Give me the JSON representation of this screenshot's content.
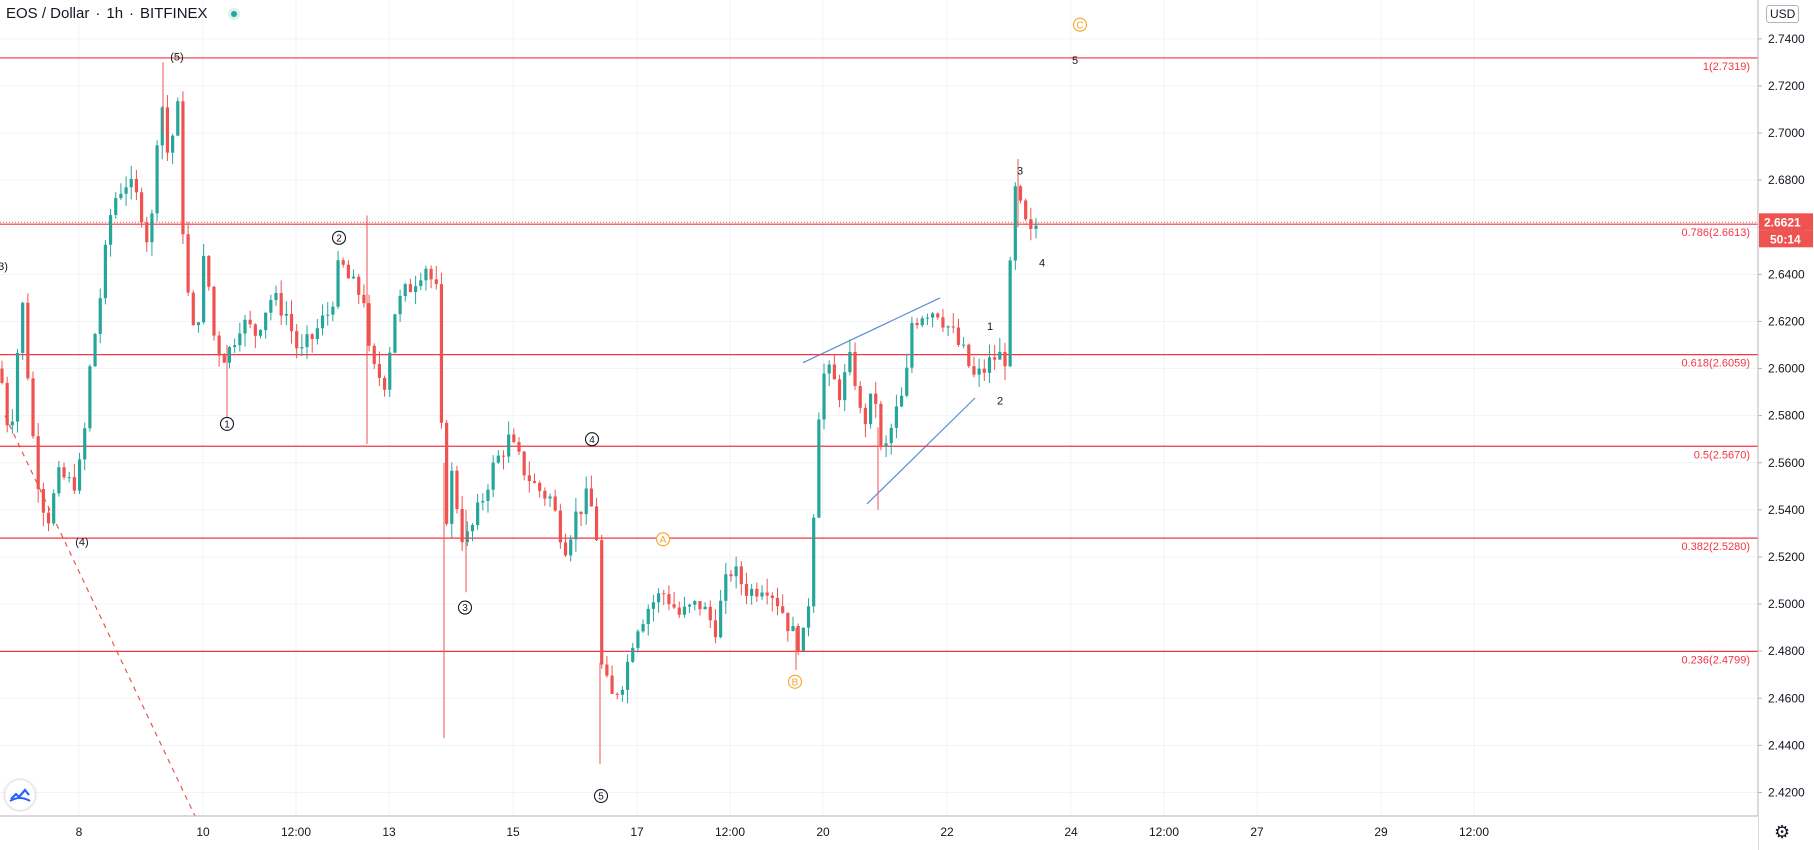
{
  "header": {
    "symbol": "EOS / Dollar",
    "interval": "1h",
    "exchange": "BITFINEX"
  },
  "currency_button": "USD",
  "icons": [
    "live-status-icon",
    "tradingview-logo-icon",
    "settings-gear-icon"
  ],
  "colors": {
    "up": "#26a69a",
    "down": "#ef5350",
    "fib": "#f23645",
    "wave_orange": "#f7a42c",
    "trendline": "#5b8cd6"
  },
  "chart_data": {
    "type": "candlestick",
    "ylim": [
      2.41,
      2.7565
    ],
    "y_ticks": [
      2.42,
      2.44,
      2.46,
      2.48,
      2.5,
      2.52,
      2.54,
      2.56,
      2.58,
      2.6,
      2.62,
      2.64,
      2.66,
      2.68,
      2.7,
      2.72,
      2.74
    ],
    "y_tick_labels": [
      "2.4200",
      "2.4400",
      "2.4600",
      "2.4800",
      "2.5000",
      "2.5200",
      "2.5400",
      "2.5600",
      "2.5800",
      "2.6000",
      "2.6200",
      "2.6400",
      "2.6600",
      "2.6800",
      "2.7000",
      "2.7200",
      "2.7400"
    ],
    "x_ticks": [
      {
        "label": "8",
        "t": 79
      },
      {
        "label": "10",
        "t": 203
      },
      {
        "label": "12:00",
        "t": 296
      },
      {
        "label": "13",
        "t": 389
      },
      {
        "label": "15",
        "t": 513
      },
      {
        "label": "17",
        "t": 637
      },
      {
        "label": "12:00",
        "t": 730
      },
      {
        "label": "20",
        "t": 823
      },
      {
        "label": "22",
        "t": 947
      },
      {
        "label": "24",
        "t": 1071
      },
      {
        "label": "12:00",
        "t": 1164
      },
      {
        "label": "27",
        "t": 1257
      },
      {
        "label": "29",
        "t": 1381
      },
      {
        "label": "12:00",
        "t": 1474
      }
    ],
    "last_price": "2.6621",
    "countdown": "50:14",
    "fib_levels": [
      {
        "value": 2.7319,
        "label": "1(2.7319)"
      },
      {
        "value": 2.6613,
        "label": "0.786(2.6613)"
      },
      {
        "value": 2.6059,
        "label": "0.618(2.6059)"
      },
      {
        "value": 2.567,
        "label": "0.5(2.5670)"
      },
      {
        "value": 2.528,
        "label": "0.382(2.5280)"
      },
      {
        "value": 2.4799,
        "label": "0.236(2.4799)"
      }
    ],
    "waypoints": [
      {
        "t": 0,
        "v": 2.6
      },
      {
        "t": 10,
        "v": 2.57
      },
      {
        "t": 22,
        "v": 2.63
      },
      {
        "t": 35,
        "v": 2.56
      },
      {
        "t": 47,
        "v": 2.535
      },
      {
        "t": 60,
        "v": 2.555
      },
      {
        "t": 72,
        "v": 2.55
      },
      {
        "t": 82,
        "v": 2.56
      },
      {
        "t": 90,
        "v": 2.6
      },
      {
        "t": 100,
        "v": 2.63
      },
      {
        "t": 112,
        "v": 2.67
      },
      {
        "t": 125,
        "v": 2.68
      },
      {
        "t": 140,
        "v": 2.67
      },
      {
        "t": 150,
        "v": 2.65
      },
      {
        "t": 160,
        "v": 2.72
      },
      {
        "t": 168,
        "v": 2.69
      },
      {
        "t": 178,
        "v": 2.71
      },
      {
        "t": 185,
        "v": 2.64
      },
      {
        "t": 195,
        "v": 2.61
      },
      {
        "t": 205,
        "v": 2.65
      },
      {
        "t": 215,
        "v": 2.61
      },
      {
        "t": 227,
        "v": 2.605
      },
      {
        "t": 240,
        "v": 2.62
      },
      {
        "t": 255,
        "v": 2.615
      },
      {
        "t": 270,
        "v": 2.63
      },
      {
        "t": 285,
        "v": 2.625
      },
      {
        "t": 300,
        "v": 2.605
      },
      {
        "t": 315,
        "v": 2.615
      },
      {
        "t": 330,
        "v": 2.625
      },
      {
        "t": 340,
        "v": 2.645
      },
      {
        "t": 352,
        "v": 2.635
      },
      {
        "t": 365,
        "v": 2.63
      },
      {
        "t": 370,
        "v": 2.6
      },
      {
        "t": 385,
        "v": 2.595
      },
      {
        "t": 395,
        "v": 2.625
      },
      {
        "t": 410,
        "v": 2.635
      },
      {
        "t": 425,
        "v": 2.645
      },
      {
        "t": 438,
        "v": 2.63
      },
      {
        "t": 444,
        "v": 2.53
      },
      {
        "t": 452,
        "v": 2.555
      },
      {
        "t": 464,
        "v": 2.525
      },
      {
        "t": 475,
        "v": 2.535
      },
      {
        "t": 490,
        "v": 2.555
      },
      {
        "t": 508,
        "v": 2.57
      },
      {
        "t": 520,
        "v": 2.56
      },
      {
        "t": 535,
        "v": 2.55
      },
      {
        "t": 550,
        "v": 2.545
      },
      {
        "t": 565,
        "v": 2.525
      },
      {
        "t": 578,
        "v": 2.54
      },
      {
        "t": 588,
        "v": 2.545
      },
      {
        "t": 596,
        "v": 2.535
      },
      {
        "t": 602,
        "v": 2.47
      },
      {
        "t": 612,
        "v": 2.46
      },
      {
        "t": 625,
        "v": 2.47
      },
      {
        "t": 635,
        "v": 2.49
      },
      {
        "t": 650,
        "v": 2.5
      },
      {
        "t": 665,
        "v": 2.505
      },
      {
        "t": 680,
        "v": 2.495
      },
      {
        "t": 700,
        "v": 2.5
      },
      {
        "t": 715,
        "v": 2.49
      },
      {
        "t": 730,
        "v": 2.515
      },
      {
        "t": 750,
        "v": 2.505
      },
      {
        "t": 765,
        "v": 2.51
      },
      {
        "t": 780,
        "v": 2.5
      },
      {
        "t": 795,
        "v": 2.485
      },
      {
        "t": 806,
        "v": 2.485
      },
      {
        "t": 812,
        "v": 2.525
      },
      {
        "t": 818,
        "v": 2.58
      },
      {
        "t": 825,
        "v": 2.6
      },
      {
        "t": 840,
        "v": 2.59
      },
      {
        "t": 852,
        "v": 2.605
      },
      {
        "t": 862,
        "v": 2.575
      },
      {
        "t": 875,
        "v": 2.59
      },
      {
        "t": 882,
        "v": 2.56
      },
      {
        "t": 895,
        "v": 2.58
      },
      {
        "t": 905,
        "v": 2.59
      },
      {
        "t": 912,
        "v": 2.62
      },
      {
        "t": 925,
        "v": 2.625
      },
      {
        "t": 938,
        "v": 2.625
      },
      {
        "t": 952,
        "v": 2.615
      },
      {
        "t": 965,
        "v": 2.605
      },
      {
        "t": 975,
        "v": 2.595
      },
      {
        "t": 985,
        "v": 2.6
      },
      {
        "t": 995,
        "v": 2.605
      },
      {
        "t": 1005,
        "v": 2.605
      },
      {
        "t": 1010,
        "v": 2.64
      },
      {
        "t": 1015,
        "v": 2.675
      },
      {
        "t": 1022,
        "v": 2.665
      },
      {
        "t": 1030,
        "v": 2.655
      },
      {
        "t": 1037,
        "v": 2.662
      }
    ],
    "wicks": [
      {
        "t": 163,
        "high": 2.73,
        "low": 2.7
      },
      {
        "t": 367,
        "high": 2.665,
        "low": 2.568
      },
      {
        "t": 444,
        "high": 2.56,
        "low": 2.443
      },
      {
        "t": 600,
        "high": 2.475,
        "low": 2.432
      },
      {
        "t": 796,
        "high": 2.49,
        "low": 2.472
      },
      {
        "t": 878,
        "high": 2.575,
        "low": 2.54
      },
      {
        "t": 1018,
        "high": 2.689,
        "low": 2.66
      },
      {
        "t": 227,
        "high": 2.61,
        "low": 2.577
      },
      {
        "t": 466,
        "high": 2.54,
        "low": 2.505
      }
    ],
    "trendlines": [
      {
        "t1": 803,
        "v1": 2.6025,
        "t2": 940,
        "v2": 2.63
      },
      {
        "t1": 867,
        "v1": 2.5425,
        "t2": 975,
        "v2": 2.5875
      },
      {
        "t1": 5,
        "v1": 2.58,
        "t2": 195,
        "v2": 2.41,
        "dashed": true
      }
    ],
    "wave_labels": [
      {
        "text": "(5)",
        "t": 177,
        "v": 2.7325,
        "style": "plain"
      },
      {
        "text": "3)",
        "t": 3,
        "v": 2.6435,
        "style": "plain"
      },
      {
        "text": "(4)",
        "t": 82,
        "v": 2.5265,
        "style": "plain"
      },
      {
        "text": "1",
        "t": 227,
        "v": 2.5765,
        "style": "circle"
      },
      {
        "text": "2",
        "t": 339,
        "v": 2.6555,
        "style": "circle"
      },
      {
        "text": "3",
        "t": 465,
        "v": 2.4985,
        "style": "circle"
      },
      {
        "text": "4",
        "t": 592,
        "v": 2.57,
        "style": "circle"
      },
      {
        "text": "5",
        "t": 601,
        "v": 2.4185,
        "style": "circle"
      },
      {
        "text": "A",
        "t": 663,
        "v": 2.5275,
        "style": "circle-orange"
      },
      {
        "text": "B",
        "t": 795,
        "v": 2.467,
        "style": "circle-orange"
      },
      {
        "text": "C",
        "t": 1080,
        "v": 2.746,
        "style": "circle-orange"
      },
      {
        "text": "5",
        "t": 1075,
        "v": 2.731,
        "style": "plain"
      },
      {
        "text": "3",
        "t": 1020,
        "v": 2.684,
        "style": "plain"
      },
      {
        "text": "4",
        "t": 1042,
        "v": 2.645,
        "style": "plain"
      },
      {
        "text": "1",
        "t": 990,
        "v": 2.618,
        "style": "plain"
      },
      {
        "text": "2",
        "t": 1000,
        "v": 2.5865,
        "style": "plain"
      }
    ]
  }
}
